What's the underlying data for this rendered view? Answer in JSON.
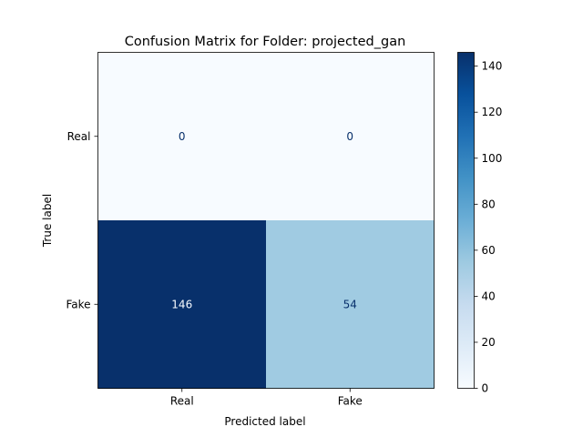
{
  "chart_data": {
    "type": "heatmap",
    "title": "Confusion Matrix for Folder: projected_gan",
    "xlabel": "Predicted label",
    "ylabel": "True label",
    "row_labels": [
      "Real",
      "Fake"
    ],
    "col_labels": [
      "Real",
      "Fake"
    ],
    "values": [
      [
        0,
        0
      ],
      [
        146,
        54
      ]
    ],
    "colormap": "Blues",
    "vmin": 0,
    "vmax": 146,
    "colorbar_ticks": [
      0,
      20,
      40,
      60,
      80,
      100,
      120,
      140
    ],
    "grid": false,
    "colors": {
      "low": "#f7fbff",
      "high": "#08306b",
      "text_dark": "#08306b",
      "text_light": "#f7fbff",
      "axis": "#000000"
    }
  }
}
